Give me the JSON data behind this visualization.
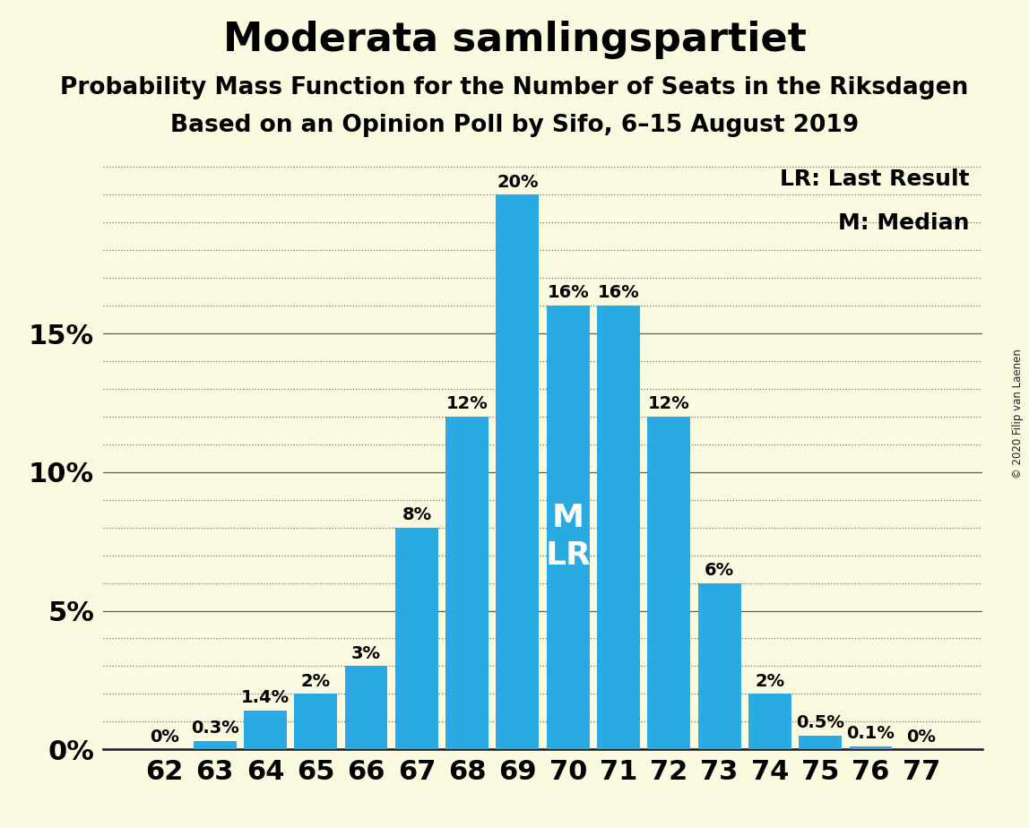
{
  "title": "Moderata samlingspartiet",
  "subtitle1": "Probability Mass Function for the Number of Seats in the Riksdagen",
  "subtitle2": "Based on an Opinion Poll by Sifo, 6–15 August 2019",
  "copyright": "© 2020 Filip van Laenen",
  "categories": [
    62,
    63,
    64,
    65,
    66,
    67,
    68,
    69,
    70,
    71,
    72,
    73,
    74,
    75,
    76,
    77
  ],
  "values": [
    0.0,
    0.3,
    1.4,
    2.0,
    3.0,
    8.0,
    12.0,
    20.0,
    16.0,
    16.0,
    12.0,
    6.0,
    2.0,
    0.5,
    0.1,
    0.0
  ],
  "bar_color": "#29ABE2",
  "background_color": "#FAFAE0",
  "median_seat": 70,
  "last_result_seat": 70,
  "legend_lr": "LR: Last Result",
  "legend_m": "M: Median",
  "major_yticks": [
    0,
    5,
    10,
    15
  ],
  "minor_yticks_step": 1,
  "ylim": [
    0,
    21.5
  ],
  "title_fontsize": 32,
  "subtitle_fontsize": 19,
  "bar_label_fontsize": 14,
  "axis_tick_fontsize": 22,
  "legend_fontsize": 18,
  "ml_fontsize": 26
}
